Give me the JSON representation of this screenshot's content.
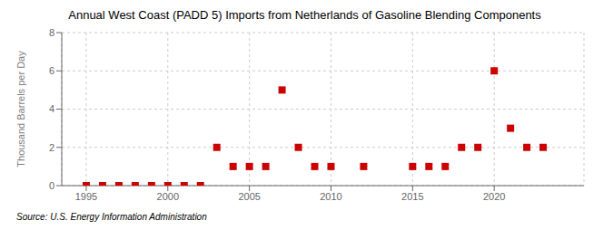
{
  "chart_data": {
    "type": "scatter",
    "title": "Annual West Coast (PADD 5) Imports from Netherlands of Gasoline Blending Components",
    "ylabel": "Thousand Barrels per Day",
    "source": "Source: U.S. Energy Information Administration",
    "x": [
      1995,
      1996,
      1997,
      1998,
      1999,
      2000,
      2001,
      2002,
      2003,
      2004,
      2005,
      2006,
      2007,
      2008,
      2009,
      2010,
      2012,
      2015,
      2016,
      2017,
      2018,
      2019,
      2020,
      2021,
      2022,
      2023
    ],
    "values": [
      0,
      0,
      0,
      0,
      0,
      0,
      0,
      0,
      2,
      1,
      1,
      1,
      5,
      2,
      1,
      1,
      1,
      1,
      1,
      1,
      2,
      2,
      6,
      3,
      2,
      2
    ],
    "color": "#cc0000",
    "marker": "square",
    "xlim": [
      1993.5,
      2025.5
    ],
    "ylim": [
      0,
      8
    ],
    "xticks": [
      1995,
      2000,
      2005,
      2010,
      2015,
      2020
    ],
    "yticks": [
      0,
      2,
      4,
      6,
      8
    ],
    "grid": true
  }
}
